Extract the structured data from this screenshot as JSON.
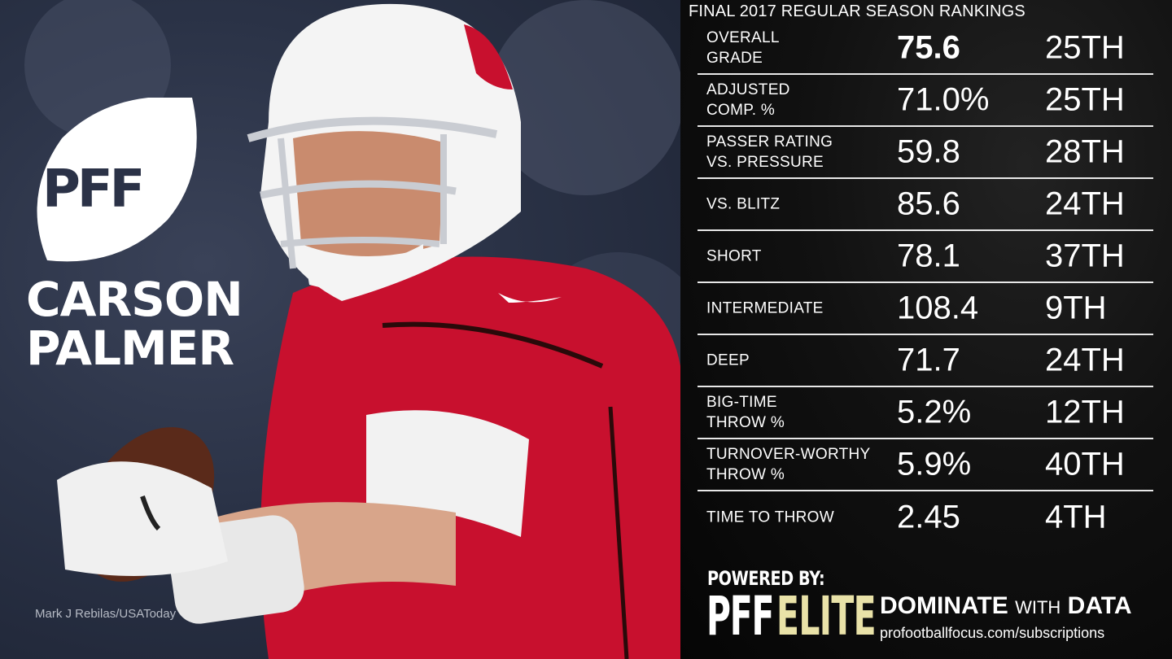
{
  "player": {
    "first_name": "CARSON",
    "last_name": "PALMER",
    "photo_credit": "Mark J Rebilas/USAToday",
    "logo_text": "PFF"
  },
  "stats_panel": {
    "title": "FINAL 2017 REGULAR SEASON RANKINGS",
    "rows": [
      {
        "label": "OVERALL\nGRADE",
        "value": "75.6",
        "rank": "25TH"
      },
      {
        "label": "ADJUSTED\nCOMP. %",
        "value": "71.0%",
        "rank": "25TH"
      },
      {
        "label": "PASSER RATING\nVS. PRESSURE",
        "value": "59.8",
        "rank": "28TH"
      },
      {
        "label": "VS. BLITZ",
        "value": "85.6",
        "rank": "24TH"
      },
      {
        "label": "SHORT",
        "value": "78.1",
        "rank": "37TH"
      },
      {
        "label": "INTERMEDIATE",
        "value": "108.4",
        "rank": "9TH"
      },
      {
        "label": "DEEP",
        "value": "71.7",
        "rank": "24TH"
      },
      {
        "label": "BIG-TIME\nTHROW %",
        "value": "5.2%",
        "rank": "12TH"
      },
      {
        "label": "TURNOVER-WORTHY\nTHROW %",
        "value": "5.9%",
        "rank": "40TH"
      },
      {
        "label": "TIME TO THROW",
        "value": "2.45",
        "rank": "4TH"
      }
    ]
  },
  "footer": {
    "powered_by": "POWERED BY:",
    "brand_pff": "PFF",
    "brand_elite": "ELITE",
    "tagline_a": "DOMINATE",
    "tagline_b": "WITH",
    "tagline_c": "DATA",
    "url": "profootballfocus.com/subscriptions"
  },
  "colors": {
    "jersey_red": "#c8102e",
    "elite_gold": "#e9e2a8",
    "panel_bg": "#0a0a0a"
  }
}
